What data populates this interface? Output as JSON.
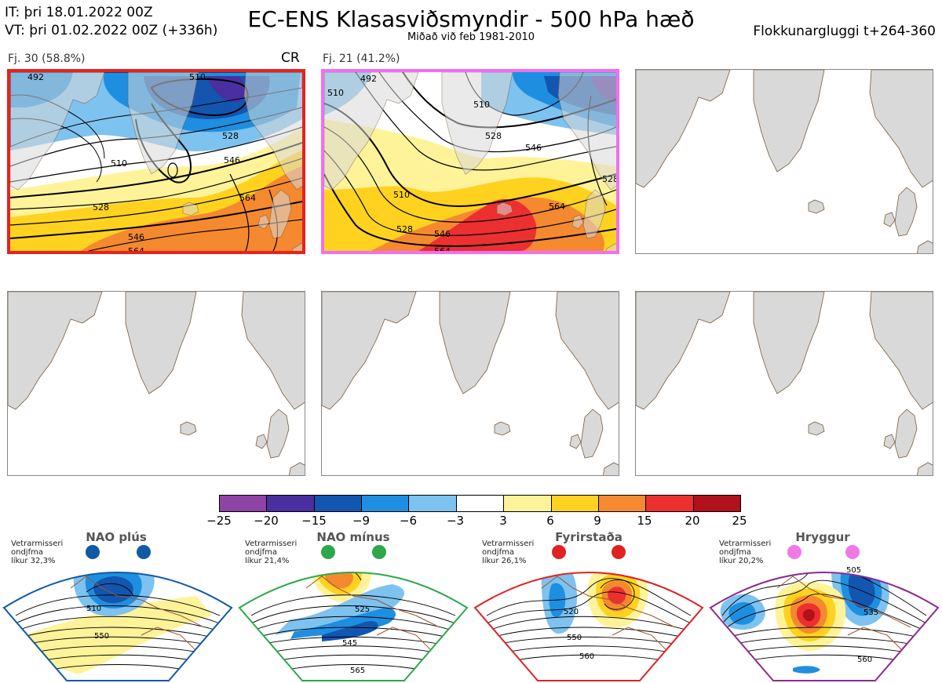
{
  "header": {
    "it_line": "IT: þri 18.01.2022 00Z",
    "vt_line": "VT: þri 01.02.2022 00Z  (+336h)",
    "title": "EC-ENS Klasasviðsmyndir - 500 hPa hæð",
    "subtitle": "Miðað við feb 1981-2010",
    "window": "Flokkunargluggi t+264-360"
  },
  "clusters": [
    {
      "label": "Fj. 30 (58.8%)",
      "regime_tag": "CR",
      "border_color": "#e8211d",
      "contour_labels": [
        "492",
        "510",
        "510",
        "528",
        "528",
        "546",
        "564",
        "546",
        "564"
      ]
    },
    {
      "label": "Fj. 21 (41.2%)",
      "regime_tag": "",
      "border_color": "#f26ef2",
      "contour_labels": [
        "510",
        "492",
        "510",
        "528",
        "546",
        "528",
        "510",
        "564",
        "528",
        "546",
        "564"
      ]
    }
  ],
  "empty_panels": 4,
  "colorbar": {
    "colors": [
      "#8e44a4",
      "#4b2fa0",
      "#1256b0",
      "#1e8fe0",
      "#7ec2ef",
      "#ffffff",
      "#fff39a",
      "#ffd21f",
      "#f5892f",
      "#ec3030",
      "#b1111a"
    ],
    "ticks": [
      "−25",
      "−20",
      "−15",
      "−9",
      "−6",
      "−3",
      "3",
      "6",
      "9",
      "15",
      "20",
      "25"
    ]
  },
  "regimes": [
    {
      "name": "NAO plús",
      "season": "Vetrarmisseri",
      "type": "ondjfma",
      "prob": "líkur 32,3%",
      "frame_color": "#1059a6",
      "dot_color": "#1059a6",
      "labels": [
        "510",
        "550"
      ]
    },
    {
      "name": "NAO mínus",
      "season": "Vetrarmisseri",
      "type": "ondjfma",
      "prob": "líkur 21,4%",
      "frame_color": "#2ca84a",
      "dot_color": "#2ca84a",
      "labels": [
        "525",
        "545",
        "565"
      ]
    },
    {
      "name": "Fyrirstaða",
      "season": "Vetrarmisseri",
      "type": "ondjfma",
      "prob": "líkur 26,1%",
      "frame_color": "#e02222",
      "dot_color": "#e02222",
      "labels": [
        "520",
        "550",
        "560"
      ]
    },
    {
      "name": "Hryggur",
      "season": "Vetrarmisseri",
      "type": "ondjfma",
      "prob": "líkur 20,2%",
      "frame_color": "#8e2a8e",
      "dot_color": "#ee7ae8",
      "labels": [
        "505",
        "535",
        "560"
      ]
    }
  ]
}
